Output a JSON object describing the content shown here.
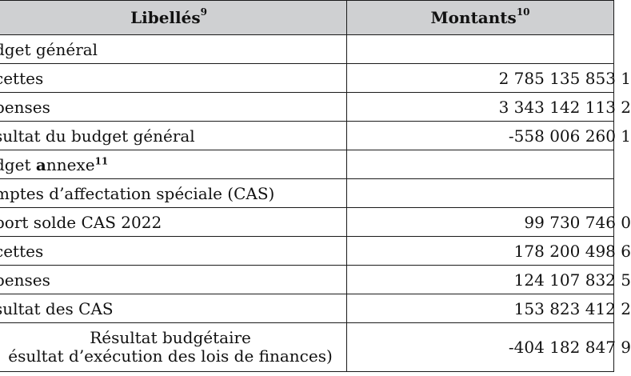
{
  "header": {
    "col1_label": "Libellés",
    "col1_note": "9",
    "col2_label": "Montants",
    "col2_note": "10"
  },
  "rows": [
    {
      "label": "dget général",
      "value": ""
    },
    {
      "label": "cettes",
      "value": "2 785 135 853 1"
    },
    {
      "label": "penses",
      "value": "3 343 142 113 2"
    },
    {
      "label": "sultat du budget général",
      "value": "-558 006 260 1"
    },
    {
      "label_pre": "dget ",
      "label_bold": "a",
      "label_post": "nnexe",
      "note": "11",
      "value": ""
    },
    {
      "label": "mptes d’affectation spéciale (CAS)",
      "value": ""
    },
    {
      "label": "port solde CAS 2022",
      "value": "99 730 746 0"
    },
    {
      "label": "cettes",
      "value": "178 200 498 6"
    },
    {
      "label": "penses",
      "value": "124 107 832 5"
    },
    {
      "label": "sultat des CAS",
      "value": "153 823 412 2"
    },
    {
      "label_line1": "Résultat budgétaire",
      "label_line2": "ésultat d’exécution des lois de finances)",
      "value": "-404 182 847 9"
    }
  ]
}
